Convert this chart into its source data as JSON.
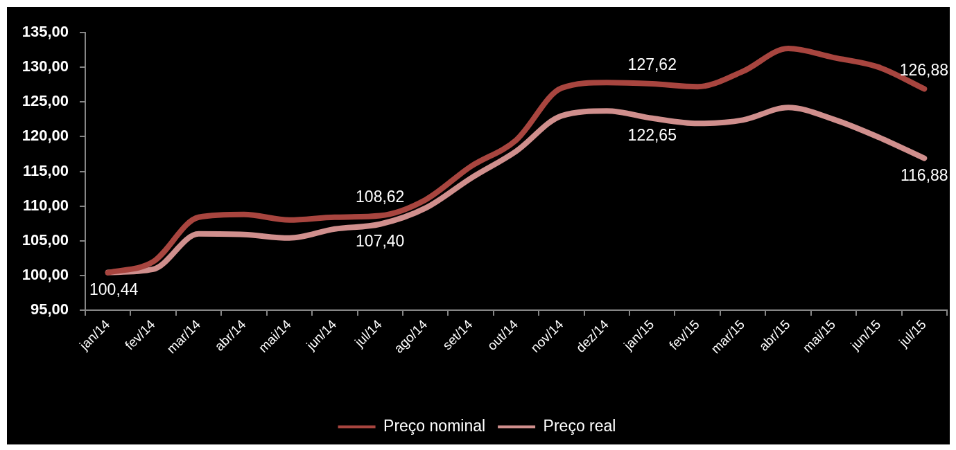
{
  "chart_data": {
    "type": "line",
    "categories": [
      "jan/14",
      "fev/14",
      "mar/14",
      "abr/14",
      "mai/14",
      "jun/14",
      "jul/14",
      "ago/14",
      "set/14",
      "out/14",
      "nov/14",
      "dez/14",
      "jan/15",
      "fev/15",
      "mar/15",
      "abr/15",
      "mai/15",
      "jun/15",
      "jul/15"
    ],
    "series": [
      {
        "name": "Preço nominal",
        "color": "#a8453f",
        "values": [
          100.4,
          102.0,
          108.4,
          108.8,
          108.0,
          108.4,
          108.62,
          110.9,
          115.7,
          119.5,
          127.0,
          127.8,
          127.62,
          127.2,
          129.4,
          132.7,
          131.4,
          130.0,
          126.88
        ],
        "value_labels": [
          null,
          null,
          null,
          null,
          null,
          null,
          "108,62",
          null,
          null,
          null,
          null,
          null,
          "127,62",
          null,
          null,
          null,
          null,
          null,
          "126,88"
        ]
      },
      {
        "name": "Preço real",
        "color": "#d08f8d",
        "values": [
          100.44,
          100.9,
          106.0,
          105.9,
          105.4,
          106.7,
          107.4,
          109.7,
          114.0,
          117.9,
          123.0,
          123.7,
          122.65,
          121.9,
          122.4,
          124.2,
          122.5,
          119.9,
          116.88
        ],
        "value_labels": [
          "100,44",
          null,
          null,
          null,
          null,
          null,
          "107,40",
          null,
          null,
          null,
          null,
          null,
          "122,65",
          null,
          null,
          null,
          null,
          null,
          "116,88"
        ]
      }
    ],
    "ylim": [
      95,
      135
    ],
    "yticks": [
      {
        "value": 95,
        "label": "95,00"
      },
      {
        "value": 100,
        "label": "100,00"
      },
      {
        "value": 105,
        "label": "105,00"
      },
      {
        "value": 110,
        "label": "110,00"
      },
      {
        "value": 115,
        "label": "115,00"
      },
      {
        "value": 120,
        "label": "120,00"
      },
      {
        "value": 125,
        "label": "125,00"
      },
      {
        "value": 130,
        "label": "130,00"
      },
      {
        "value": 135,
        "label": "135,00"
      }
    ],
    "legend": "bottom"
  }
}
